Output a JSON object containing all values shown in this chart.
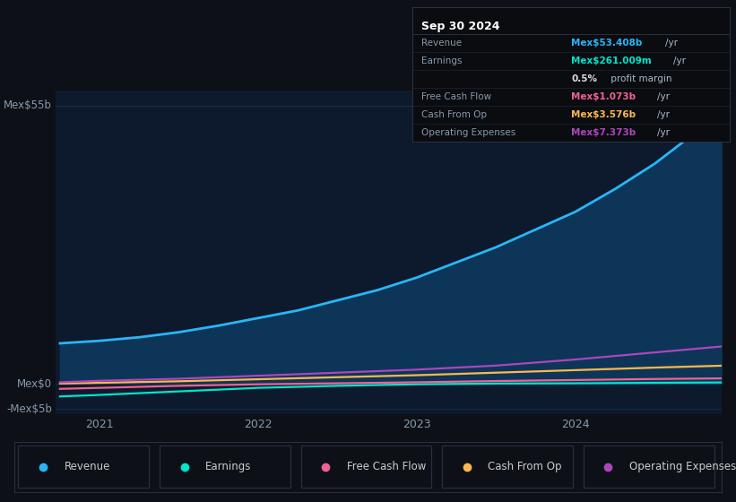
{
  "bg_color": "#0d1117",
  "chart_bg": "#0d1a2e",
  "grid_color": "#1e2d40",
  "text_color": "#8899aa",
  "ylim": [
    -6000000000.0,
    58000000000.0
  ],
  "xlim": [
    2020.72,
    2024.92
  ],
  "y_ticks": [
    {
      "val": 55000000000.0,
      "label": "Mex$55b"
    },
    {
      "val": 0,
      "label": "Mex$0"
    },
    {
      "val": -5000000000.0,
      "label": "-Mex$5b"
    }
  ],
  "x_ticks": [
    2021,
    2022,
    2023,
    2024
  ],
  "x_labels": [
    "2021",
    "2022",
    "2023",
    "2024"
  ],
  "revenue_color": "#29b6f6",
  "revenue_fill": "#0d3558",
  "revenue_x": [
    2020.75,
    2021.0,
    2021.25,
    2021.5,
    2021.75,
    2022.0,
    2022.25,
    2022.5,
    2022.75,
    2023.0,
    2023.25,
    2023.5,
    2023.75,
    2024.0,
    2024.25,
    2024.5,
    2024.75,
    2024.92
  ],
  "revenue_y": [
    8000000000.0,
    8500000000.0,
    9200000000.0,
    10200000000.0,
    11500000000.0,
    13000000000.0,
    14500000000.0,
    16500000000.0,
    18500000000.0,
    21000000000.0,
    24000000000.0,
    27000000000.0,
    30500000000.0,
    34000000000.0,
    38500000000.0,
    43500000000.0,
    49500000000.0,
    53400000000.0
  ],
  "earnings_color": "#00e5cc",
  "earnings_x": [
    2020.75,
    2021.0,
    2021.5,
    2022.0,
    2022.5,
    2023.0,
    2023.5,
    2024.0,
    2024.5,
    2024.92
  ],
  "earnings_y": [
    -2500000000.0,
    -2200000000.0,
    -1500000000.0,
    -800000000.0,
    -400000000.0,
    -100000000.0,
    50000000.0,
    100000000.0,
    200000000.0,
    261000000.0
  ],
  "fcf_color": "#f06292",
  "fcf_x": [
    2020.75,
    2021.0,
    2021.5,
    2022.0,
    2022.5,
    2023.0,
    2023.5,
    2024.0,
    2024.5,
    2024.92
  ],
  "fcf_y": [
    -1000000000.0,
    -800000000.0,
    -400000000.0,
    -100000000.0,
    100000000.0,
    300000000.0,
    550000000.0,
    750000000.0,
    950000000.0,
    1073000000.0
  ],
  "cfo_color": "#ffb74d",
  "cfo_x": [
    2020.75,
    2021.0,
    2021.5,
    2022.0,
    2022.5,
    2023.0,
    2023.5,
    2024.0,
    2024.5,
    2024.92
  ],
  "cfo_y": [
    50000000.0,
    200000000.0,
    500000000.0,
    900000000.0,
    1300000000.0,
    1700000000.0,
    2200000000.0,
    2700000000.0,
    3200000000.0,
    3576000000.0
  ],
  "opex_color": "#ab47bc",
  "opex_x": [
    2020.75,
    2021.0,
    2021.5,
    2022.0,
    2022.5,
    2023.0,
    2023.5,
    2024.0,
    2024.5,
    2024.92
  ],
  "opex_y": [
    300000000.0,
    600000000.0,
    1000000000.0,
    1600000000.0,
    2200000000.0,
    2800000000.0,
    3600000000.0,
    4800000000.0,
    6200000000.0,
    7373000000.0
  ],
  "info_box_bg": "#0a0c10",
  "info_box_border": "#2a3040",
  "info_date": "Sep 30 2024",
  "info_rows": [
    {
      "label": "Revenue",
      "value": "Mex$53.408b",
      "unit": "/yr",
      "lc": "#8899aa",
      "vc": "#29b6f6"
    },
    {
      "label": "Earnings",
      "value": "Mex$261.009m",
      "unit": "/yr",
      "lc": "#8899aa",
      "vc": "#00e5cc"
    },
    {
      "label": "",
      "value": "0.5%",
      "unit": " profit margin",
      "lc": "#8899aa",
      "vc": "#dddddd"
    },
    {
      "label": "Free Cash Flow",
      "value": "Mex$1.073b",
      "unit": "/yr",
      "lc": "#8899aa",
      "vc": "#f06292"
    },
    {
      "label": "Cash From Op",
      "value": "Mex$3.576b",
      "unit": "/yr",
      "lc": "#8899aa",
      "vc": "#ffb74d"
    },
    {
      "label": "Operating Expenses",
      "value": "Mex$7.373b",
      "unit": "/yr",
      "lc": "#8899aa",
      "vc": "#ab47bc"
    }
  ],
  "legend_items": [
    {
      "label": "Revenue",
      "color": "#29b6f6"
    },
    {
      "label": "Earnings",
      "color": "#00e5cc"
    },
    {
      "label": "Free Cash Flow",
      "color": "#f06292"
    },
    {
      "label": "Cash From Op",
      "color": "#ffb74d"
    },
    {
      "label": "Operating Expenses",
      "color": "#ab47bc"
    }
  ]
}
